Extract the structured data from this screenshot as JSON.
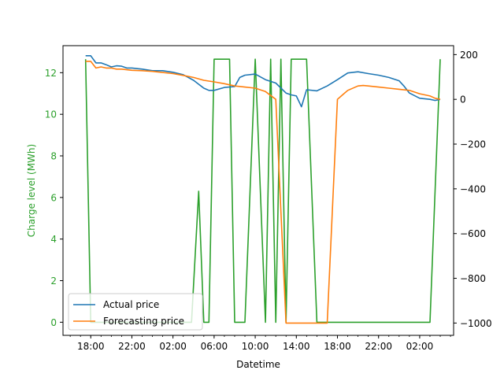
{
  "chart_data": {
    "type": "line",
    "xlabel": "Datetime",
    "ylabel_left": "Charge level (MWh)",
    "ylabel_right": "",
    "x_ticks": [
      "18:00",
      "22:00",
      "02:00",
      "06:00",
      "10:00",
      "14:00",
      "18:00",
      "22:00",
      "02:00"
    ],
    "x_tick_hours": [
      18,
      22,
      26,
      30,
      34,
      38,
      42,
      46,
      50
    ],
    "x_range_hours": [
      15.3,
      53.3
    ],
    "y_left": {
      "range": [
        -0.63,
        13.3
      ],
      "ticks": [
        0,
        2,
        4,
        6,
        8,
        10,
        12
      ]
    },
    "y_right": {
      "range": [
        -1055,
        240
      ],
      "ticks": [
        200,
        0,
        -200,
        -400,
        -600,
        -800,
        -1000
      ]
    },
    "colors": {
      "actual": "#1f77b4",
      "forecast": "#ff7f0e",
      "charge": "#2ca02c"
    },
    "legend": {
      "placement": "lower-left",
      "entries": [
        {
          "name": "Actual price",
          "color": "#1f77b4"
        },
        {
          "name": "Forecasting price",
          "color": "#ff7f0e"
        }
      ]
    },
    "series": [
      {
        "name": "Actual price",
        "axis": "right",
        "x_hours": [
          17.5,
          18.0,
          18.5,
          19.0,
          19.5,
          20.0,
          20.5,
          21.0,
          21.5,
          22.0,
          23.0,
          24.0,
          25.0,
          26.0,
          27.0,
          28.0,
          29.0,
          29.5,
          30.0,
          31.0,
          32.0,
          32.5,
          33.0,
          34.0,
          35.0,
          36.0,
          37.0,
          37.5,
          38.0,
          38.5,
          39.0,
          40.0,
          41.0,
          42.0,
          43.0,
          44.0,
          45.0,
          46.0,
          47.0,
          48.0,
          48.5,
          49.0,
          50.0,
          51.0,
          51.5,
          52.0
        ],
        "values": [
          195,
          195,
          163,
          163,
          155,
          145,
          150,
          148,
          140,
          140,
          135,
          128,
          128,
          121,
          110,
          85,
          50,
          40,
          40,
          53,
          57,
          98,
          108,
          113,
          88,
          73,
          28,
          20,
          15,
          -33,
          43,
          38,
          60,
          88,
          118,
          123,
          115,
          108,
          98,
          83,
          58,
          28,
          5,
          0,
          -5,
          0
        ]
      },
      {
        "name": "Forecasting price",
        "axis": "right",
        "x_hours": [
          17.5,
          18.0,
          18.5,
          19.0,
          19.5,
          20.0,
          20.5,
          21.0,
          22.0,
          23.0,
          24.0,
          25.0,
          26.0,
          27.0,
          28.0,
          29.0,
          30.0,
          31.0,
          32.0,
          33.0,
          34.0,
          35.0,
          36.0,
          37.0,
          37.5,
          38.0,
          38.5,
          39.0,
          40.0,
          41.0,
          42.0,
          42.5,
          43.0,
          44.0,
          44.5,
          45.0,
          46.0,
          47.0,
          48.0,
          49.0,
          50.0,
          51.0,
          51.5,
          52.0
        ],
        "values": [
          170,
          170,
          140,
          145,
          140,
          140,
          135,
          135,
          130,
          128,
          125,
          120,
          115,
          107,
          98,
          85,
          78,
          70,
          60,
          55,
          50,
          35,
          0,
          -1000,
          -1000,
          -1000,
          -1000,
          -1000,
          -1000,
          -1000,
          0,
          20,
          40,
          60,
          62,
          60,
          55,
          50,
          45,
          40,
          25,
          15,
          5,
          0
        ]
      },
      {
        "name": "Charge level",
        "axis": "left",
        "x_hours": [
          17.5,
          18.0,
          27.8,
          28.5,
          29.0,
          29.5,
          30.0,
          30.7,
          31.5,
          32.0,
          33.0,
          34.0,
          35.0,
          35.5,
          36.0,
          36.5,
          37.0,
          37.5,
          38.0,
          38.5,
          39.0,
          40.0,
          41.0,
          42.0,
          42.5,
          43.0,
          44.0,
          45.0,
          46.0,
          47.0,
          48.0,
          49.0,
          50.0,
          51.0,
          52.0
        ],
        "values": [
          12.65,
          0,
          0,
          6.3,
          0,
          0,
          12.65,
          12.65,
          12.65,
          0,
          0,
          12.65,
          0,
          12.65,
          0,
          12.65,
          0,
          12.65,
          12.65,
          12.65,
          12.65,
          0,
          0,
          0,
          0,
          0,
          0,
          0,
          0,
          0,
          0,
          0,
          0,
          0,
          12.65
        ]
      }
    ]
  }
}
